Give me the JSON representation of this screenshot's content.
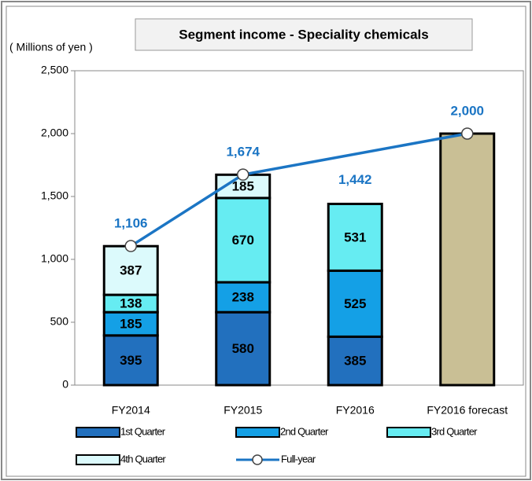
{
  "chart_data": {
    "type": "stacked_bar_line",
    "title": "Segment income - Speciality chemicals",
    "y_label": "( Millions of yen )",
    "categories": [
      "FY2014",
      "FY2015",
      "FY2016",
      "FY2016 forecast"
    ],
    "series": [
      {
        "name": "1st Quarter",
        "color": "#2270be",
        "values": [
          395,
          580,
          385,
          null
        ]
      },
      {
        "name": "2nd Quarter",
        "color": "#14a0e6",
        "values": [
          185,
          238,
          525,
          null
        ]
      },
      {
        "name": "3rd Quarter",
        "color": "#66ecf2",
        "values": [
          138,
          670,
          531,
          null
        ]
      },
      {
        "name": "4th Quarter",
        "color": "#dcfafc",
        "values": [
          387,
          185,
          null,
          null
        ]
      }
    ],
    "forecast_bar": {
      "category": "FY2016 forecast",
      "value": 2000,
      "color": "#c9bf95"
    },
    "line": {
      "name": "Full-year",
      "color": "#1b75c4",
      "x": [
        "FY2014",
        "FY2015",
        "FY2016 forecast"
      ],
      "values": [
        1106,
        1674,
        2000
      ],
      "value_labels": [
        "1,106",
        "1,674",
        "2,000"
      ]
    },
    "annotations": [
      {
        "category": "FY2016",
        "value": 1442,
        "label": "1,442"
      }
    ],
    "ylim": [
      0,
      2500
    ],
    "yticks": [
      0,
      500,
      {
        "value": 1000,
        "label": "1,000"
      },
      {
        "value": 1500,
        "label": "1,500"
      },
      {
        "value": 2000,
        "label": "2,000"
      },
      {
        "value": 2500,
        "label": "2,500"
      }
    ],
    "grid": false
  }
}
